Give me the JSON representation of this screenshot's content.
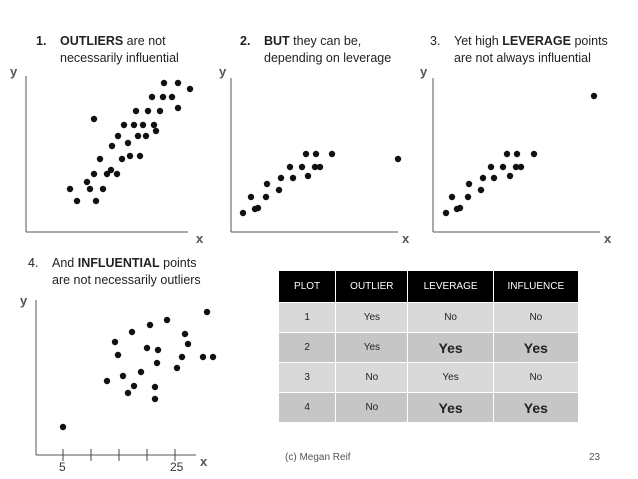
{
  "captions": {
    "c1": {
      "num": "1.",
      "bold": "OUTLIERS",
      "rest": " are not",
      "line2": "necessarily influential"
    },
    "c2": {
      "num": "2.",
      "bold": "BUT",
      "rest": " they can be,",
      "line2": "depending on leverage"
    },
    "c3": {
      "num": "3.",
      "pre": "Yet high ",
      "bold": "LEVERAGE",
      "rest": " points",
      "line2": "are not always influential"
    },
    "c4": {
      "num": "4.",
      "pre": "And ",
      "bold": "INFLUENTIAL",
      "rest": " points",
      "line2": "are not necessarily outliers"
    }
  },
  "axes": {
    "x": "x",
    "y": "y"
  },
  "plot4_ticks": {
    "left": "5",
    "right": "25"
  },
  "table": {
    "headers": [
      "PLOT",
      "OUTLIER",
      "LEVERAGE",
      "INFLUENCE"
    ],
    "rows": [
      {
        "plot": "1",
        "outlier": "Yes",
        "leverage": "No",
        "influence": "No"
      },
      {
        "plot": "2",
        "outlier": "Yes",
        "leverage": "Yes",
        "influence": "Yes"
      },
      {
        "plot": "3",
        "outlier": "No",
        "leverage": "Yes",
        "influence": "No"
      },
      {
        "plot": "4",
        "outlier": "No",
        "leverage": "Yes",
        "influence": "Yes"
      }
    ]
  },
  "footer": {
    "credit": "(c) Megan Reif",
    "page": "23"
  }
}
